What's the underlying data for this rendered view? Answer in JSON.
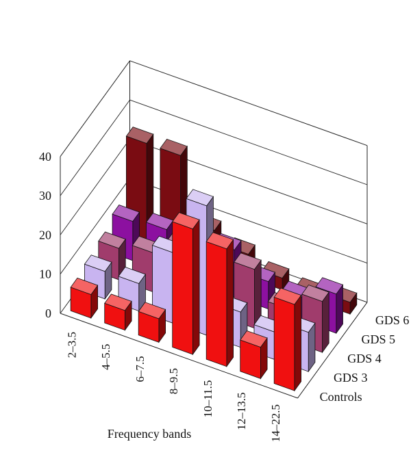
{
  "chart_data": {
    "type": "bar3d",
    "xlabel": "Frequency bands",
    "categories": [
      "2–3.5",
      "4–5.5",
      "6–7.5",
      "8–9.5",
      "10–11.5",
      "12–13.5",
      "14–22.5"
    ],
    "zlim": [
      0,
      40
    ],
    "zticks": [
      "0",
      "10",
      "20",
      "30",
      "40"
    ],
    "grid": true,
    "series": [
      {
        "name": "Controls",
        "color": "#f01010",
        "values": [
          6,
          5,
          6,
          32,
          30,
          8,
          22
        ]
      },
      {
        "name": "GDS 3",
        "color": "#c8b4f0",
        "values": [
          7,
          7,
          18,
          33,
          9,
          7,
          10
        ]
      },
      {
        "name": "GDS 4",
        "color": "#a03c6c",
        "values": [
          8,
          10,
          14,
          12,
          15,
          8,
          13
        ]
      },
      {
        "name": "GDS 5",
        "color": "#8c10a0",
        "values": [
          10,
          11,
          12,
          12,
          7,
          6,
          10
        ]
      },
      {
        "name": "GDS 6",
        "color": "#7a0c12",
        "values": [
          25,
          25,
          9,
          6,
          3,
          2,
          3
        ]
      }
    ]
  }
}
